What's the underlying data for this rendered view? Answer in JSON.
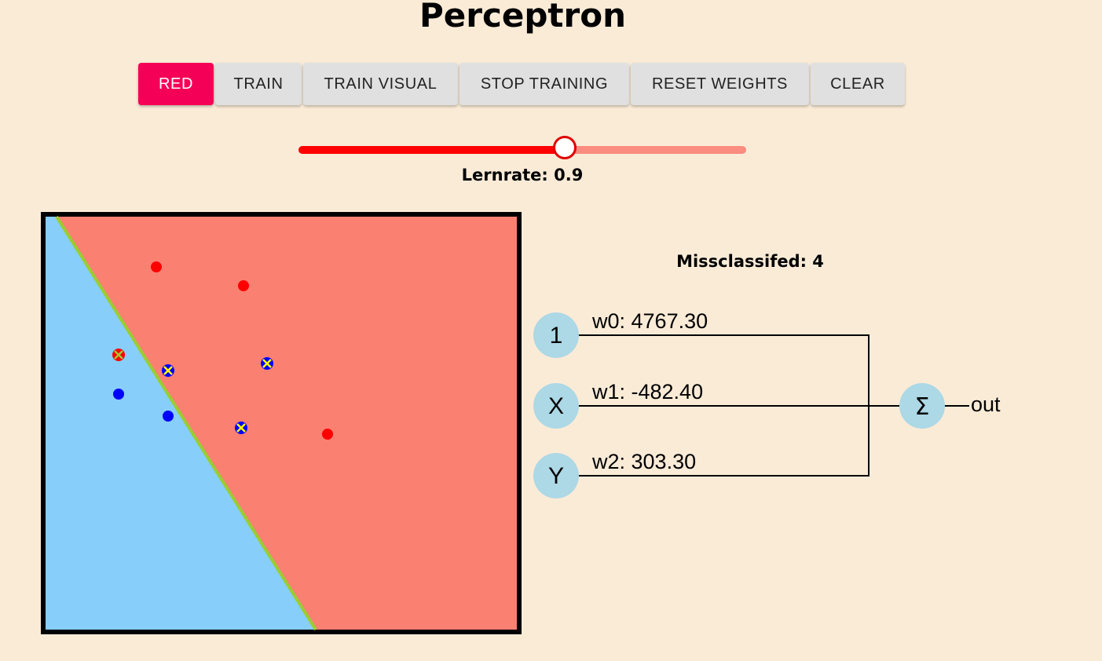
{
  "title": "Perceptron",
  "toolbar": {
    "buttons": [
      {
        "label": "RED",
        "active": true
      },
      {
        "label": "TRAIN",
        "active": false
      },
      {
        "label": "TRAIN VISUAL",
        "active": false
      },
      {
        "label": "STOP TRAINING",
        "active": false
      },
      {
        "label": "RESET WEIGHTS",
        "active": false
      },
      {
        "label": "CLEAR",
        "active": false
      }
    ]
  },
  "learning_rate": {
    "label": "Lernrate: 0.9",
    "value": 0.9,
    "fraction": 0.6
  },
  "misclassified": {
    "label": "Missclassifed: 4",
    "count": 4
  },
  "colors": {
    "background": "#faebd7",
    "active_button": "#f50057",
    "red_region": "#fa8072",
    "blue_region": "#87cefa",
    "boundary": "#9acd32",
    "red_point": "#ff0000",
    "blue_point": "#0000ff",
    "node": "#add8e6",
    "slider_track": "#ff0000",
    "slider_rail": "#fa8c80"
  },
  "network": {
    "inputs": [
      {
        "node": "1",
        "weight": "w0: 4767.30"
      },
      {
        "node": "X",
        "weight": "w1: -482.40"
      },
      {
        "node": "Y",
        "weight": "w2: 303.30"
      }
    ],
    "sum_node": "Σ",
    "output_label": "out"
  }
}
